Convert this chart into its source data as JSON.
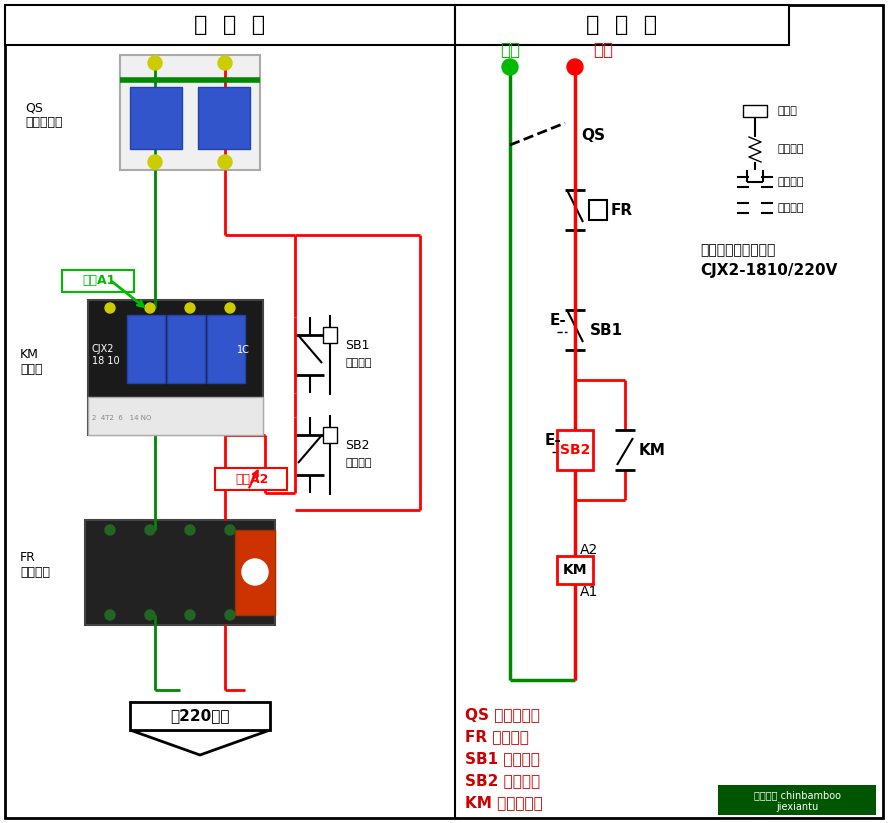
{
  "title_left": "实  物  图",
  "title_right": "原  理  图",
  "bg_color": "#ffffff",
  "colors": {
    "red": "#ff0000",
    "green": "#008800",
    "green_bright": "#00bb00",
    "black": "#000000",
    "dark_red": "#cc0000",
    "white": "#ffffff",
    "gray_light": "#f0f0f0",
    "gray_mid": "#aaaaaa",
    "blue_dark": "#2244aa",
    "blue_mid": "#3355cc",
    "yellow": "#cccc00",
    "dark_gray": "#1a1a1a",
    "medium_gray": "#888888",
    "near_black": "#222222",
    "green_terminal": "#226622",
    "orange_red": "#cc3300"
  },
  "legend": [
    "QS 空气断路器",
    "FR 热继电器",
    "SB1 停止按钮",
    "SB2 启动按钮",
    "KM 交流接触器"
  ],
  "note_line1": "注：交流接触器选用",
  "note_line2": "CJX2-1810/220V",
  "watermark_line1": "百度知道 chinbamboo",
  "watermark_line2": "jiexiantu"
}
